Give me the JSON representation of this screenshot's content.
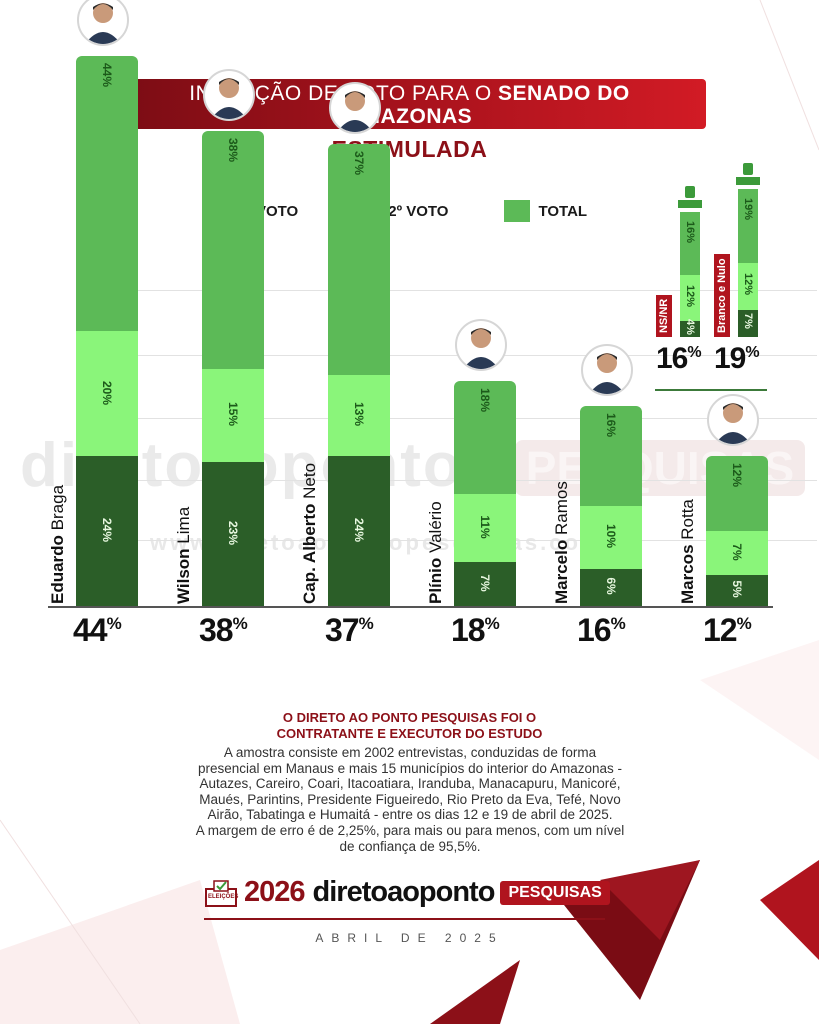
{
  "header": {
    "title_prefix": "INTENÇÃO DE VOTO PARA O",
    "title_bold_1": "SENADO DO",
    "title_bold_2": "AMAZONAS",
    "subtitle": "ESTIMULADA"
  },
  "legend": [
    {
      "label": "1º VOTO",
      "color": "#2b5e28"
    },
    {
      "label": "2º VOTO",
      "color": "#8af57a"
    },
    {
      "label": "TOTAL",
      "color": "#5cba57"
    }
  ],
  "watermark": {
    "main": "diretoaoponto",
    "badge": "PESQUISAS",
    "url": "www.diretoaopontopesquisas.com"
  },
  "chart_data": {
    "type": "bar",
    "categories": [
      "Eduardo Braga",
      "Wilson Lima",
      "Cap. Alberto Neto",
      "Plínio Valério",
      "Marcelo Ramos",
      "Marcos Rotta"
    ],
    "series": [
      {
        "name": "1º VOTO",
        "values": [
          24,
          23,
          24,
          7,
          6,
          5
        ]
      },
      {
        "name": "2º VOTO",
        "values": [
          20,
          15,
          13,
          11,
          10,
          7
        ]
      },
      {
        "name": "TOTAL",
        "values": [
          44,
          38,
          37,
          18,
          16,
          12
        ]
      }
    ],
    "unit": "%",
    "ylim": [
      0,
      50
    ]
  },
  "candidates": [
    {
      "first": "Eduardo",
      "last": "Braga",
      "first_bold": true,
      "total": "44",
      "v1": "24%",
      "v2": "20%",
      "vt": "44%"
    },
    {
      "first": "Wilson",
      "last": "Lima",
      "first_bold": true,
      "total": "38",
      "v1": "23%",
      "v2": "15%",
      "vt": "38%"
    },
    {
      "first": "Cap. Alberto",
      "last": "Neto",
      "first_bold": true,
      "total": "37",
      "v1": "24%",
      "v2": "13%",
      "vt": "37%"
    },
    {
      "first": "Plínio",
      "last": "Valério",
      "first_bold": true,
      "total": "18",
      "v1": "7%",
      "v2": "11%",
      "vt": "18%"
    },
    {
      "first": "Marcelo",
      "last": "Ramos",
      "first_bold": true,
      "total": "16",
      "v1": "6%",
      "v2": "10%",
      "vt": "16%"
    },
    {
      "first": "Marcos",
      "last": "Rotta",
      "first_bold": true,
      "total": "12",
      "v1": "5%",
      "v2": "7%",
      "vt": "12%"
    }
  ],
  "percent_sign": "%",
  "side_chart": {
    "type": "bar",
    "items": [
      {
        "label": "NS/NR",
        "v1": 4,
        "v2": 12,
        "total": 16,
        "v1_text": "4%",
        "v2_text": "12%",
        "vt_text": "16%",
        "total_text": "16"
      },
      {
        "label": "Branco e Nulo",
        "v1": 7,
        "v2": 12,
        "total": 19,
        "v1_text": "7%",
        "v2_text": "12%",
        "vt_text": "19%",
        "total_text": "19"
      }
    ]
  },
  "footer": {
    "heading_line1": "O DIRETO AO PONTO PESQUISAS FOI O",
    "heading_line2": "CONTRATANTE E EXECUTOR DO ESTUDO",
    "text_line1": "A amostra consiste em 2002 entrevistas, conduzidas de forma",
    "text_line2": "presencial em Manaus e mais 15 municípios do interior do Amazonas -",
    "text_line3": "Autazes, Careiro, Coari, Itacoatiara, Iranduba, Manacapuru, Manicoré,",
    "text_line4": "Maués, Parintins, Presidente Figueiredo, Rio Preto da Eva, Tefé, Novo",
    "text_line5": "Airão, Tabatinga e Humaitá - entre os dias 12 e 19 de abril de 2025.",
    "text_line6": "A margem de erro é de 2,25%, para mais ou para menos, com um nível",
    "text_line7": "de confiança de 95,5%.",
    "logo_tag": "ELEIÇÕES",
    "logo_year": "2026",
    "logo_brand": "diretoaoponto",
    "logo_pesquisas": "PESQUISAS",
    "date": "ABRIL DE 2025"
  }
}
